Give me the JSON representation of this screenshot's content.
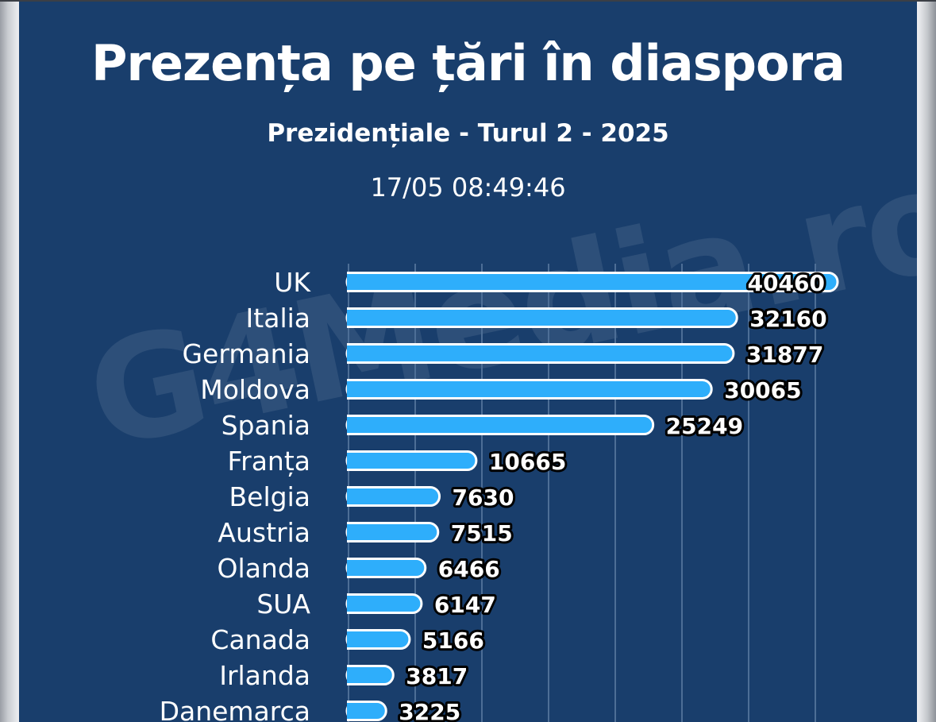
{
  "header": {
    "title": "Prezența pe țări în diaspora",
    "subtitle": "Prezidențiale - Turul 2 - 2025",
    "timestamp": "17/05 08:49:46"
  },
  "watermark": "G4Media.ro",
  "colors": {
    "background": "#193e6c",
    "bar_fill": "#2eaefb",
    "bar_outline": "#ffffff",
    "gridline": "#4d6e96"
  },
  "chart_data": {
    "type": "bar",
    "orientation": "horizontal",
    "title": "Prezența pe țări în diaspora",
    "subtitle": "Prezidențiale - Turul 2 - 2025",
    "categories": [
      "UK",
      "Italia",
      "Germania",
      "Moldova",
      "Spania",
      "Franța",
      "Belgia",
      "Austria",
      "Olanda",
      "SUA",
      "Canada",
      "Irlanda",
      "Danemarca"
    ],
    "values": [
      40460,
      32160,
      31877,
      30065,
      25249,
      10665,
      7630,
      7515,
      6466,
      6147,
      5166,
      3817,
      3225
    ],
    "xlim": [
      0,
      42000
    ],
    "grid": true,
    "legend": "none"
  }
}
